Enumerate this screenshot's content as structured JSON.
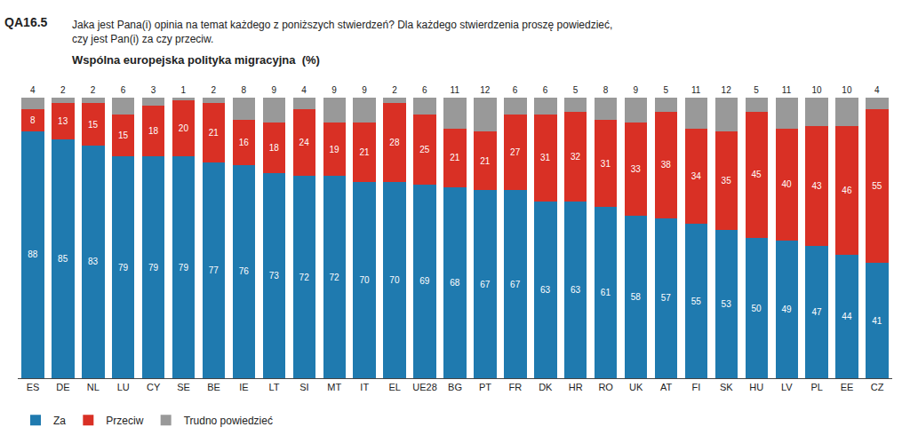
{
  "chart_data": {
    "type": "bar",
    "stacked": true,
    "title": "QA16.5",
    "subtitle": "Jaka jest Pana(i) opinia na temat każdego z poniższych stwierdzeń? Dla każdego stwierdzenia proszę powiedzieć,\nczy jest Pan(i) za czy przeciw.",
    "annotations": [
      {
        "text": "Wspólna europejska polityka migracyjna  (%)"
      }
    ],
    "categories": [
      "ES",
      "DE",
      "NL",
      "LU",
      "CY",
      "SE",
      "BE",
      "IE",
      "LT",
      "SI",
      "MT",
      "IT",
      "EL",
      "UE28",
      "BG",
      "PT",
      "FR",
      "DK",
      "HR",
      "RO",
      "UK",
      "AT",
      "FI",
      "SK",
      "HU",
      "LV",
      "PL",
      "EE",
      "CZ"
    ],
    "series": [
      {
        "name": "Za",
        "color": "#1F7AAF",
        "values": [
          88,
          85,
          83,
          79,
          79,
          79,
          77,
          76,
          73,
          72,
          72,
          70,
          70,
          69,
          68,
          67,
          67,
          63,
          63,
          61,
          58,
          57,
          55,
          53,
          50,
          49,
          47,
          44,
          41
        ]
      },
      {
        "name": "Przeciw",
        "color": "#D93025",
        "values": [
          8,
          13,
          15,
          15,
          18,
          20,
          21,
          16,
          18,
          24,
          19,
          21,
          28,
          25,
          21,
          21,
          27,
          31,
          32,
          31,
          33,
          38,
          34,
          35,
          45,
          40,
          43,
          46,
          55
        ]
      },
      {
        "name": "Trudno powiedzieć",
        "color": "#999999",
        "values": [
          4,
          2,
          2,
          6,
          3,
          1,
          2,
          8,
          9,
          4,
          9,
          9,
          2,
          6,
          11,
          12,
          6,
          6,
          5,
          8,
          9,
          5,
          11,
          12,
          5,
          11,
          10,
          10,
          4
        ]
      }
    ],
    "ylim": [
      0,
      100
    ],
    "data_labels": true,
    "tick_labels": "x",
    "grid": false,
    "legend": "bottom"
  }
}
